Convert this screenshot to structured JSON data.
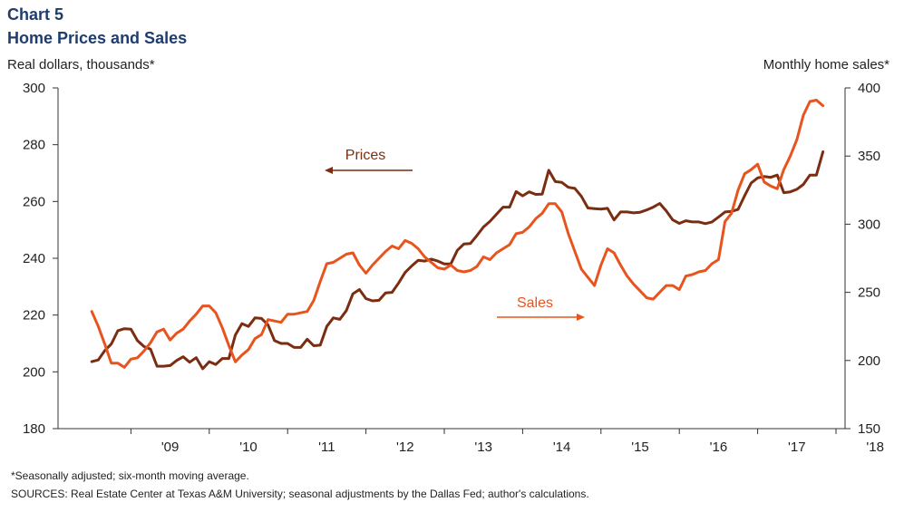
{
  "header": {
    "chart_number": "Chart 5",
    "title": "Home Prices and Sales",
    "left_axis_label": "Real dollars, thousands*",
    "right_axis_label": "Monthly home sales*"
  },
  "footer": {
    "footnote": "*Seasonally adjusted; six-month moving average.",
    "sources": "SOURCES: Real Estate Center at Texas A&M University; seasonal adjustments by the Dallas Fed; author's calculations."
  },
  "colors": {
    "prices": "#7b2d12",
    "sales": "#e8541e",
    "axis": "#333333"
  },
  "chart_data": {
    "type": "line",
    "x_tick_labels": [
      "'09",
      "'10",
      "'11",
      "'12",
      "'13",
      "'14",
      "'15",
      "'16",
      "'17",
      "'18"
    ],
    "ylim_left": [
      180,
      300
    ],
    "yticks_left": [
      180,
      200,
      220,
      240,
      260,
      280,
      300
    ],
    "ylim_right": [
      150,
      400
    ],
    "yticks_right": [
      150,
      200,
      250,
      300,
      350,
      400
    ],
    "grid": false,
    "annotations": [
      {
        "text": "Prices",
        "arrow": "left",
        "series": "Prices"
      },
      {
        "text": "Sales",
        "arrow": "right",
        "series": "Sales"
      }
    ],
    "series": [
      {
        "name": "Prices",
        "axis": "left",
        "x_start": "2008-07",
        "values": [
          203.6,
          204.2,
          207.5,
          209.8,
          214.5,
          215.2,
          215.0,
          211.0,
          208.9,
          208.0,
          202.0,
          202.0,
          202.2,
          204.0,
          205.3,
          203.4,
          205.0,
          201.1,
          203.6,
          202.6,
          204.7,
          204.7,
          213.0,
          217.0,
          216.0,
          219.0,
          218.8,
          216.5,
          211.0,
          210.0,
          210.0,
          208.6,
          208.6,
          211.5,
          209.2,
          209.4,
          216.0,
          219.0,
          218.5,
          221.6,
          227.5,
          229.0,
          225.8,
          225.0,
          225.2,
          227.8,
          228.0,
          231.3,
          235.0,
          237.3,
          239.3,
          239.0,
          239.7,
          239.0,
          238.0,
          238.0,
          242.8,
          245.0,
          245.2,
          248.0,
          251.0,
          253.0,
          255.5,
          258.0,
          258.0,
          263.5,
          262.0,
          263.4,
          262.5,
          262.6,
          271.0,
          267.0,
          266.7,
          265.0,
          264.6,
          261.8,
          257.7,
          257.5,
          257.3,
          257.6,
          253.5,
          256.3,
          256.3,
          256.0,
          256.2,
          257.0,
          258.0,
          259.3,
          256.7,
          253.5,
          252.3,
          253.2,
          252.8,
          252.8,
          252.2,
          252.8,
          254.5,
          256.3,
          256.5,
          257.2,
          262.0,
          266.5,
          268.3,
          268.8,
          268.5,
          269.3,
          263.1,
          263.4,
          264.3,
          266.0,
          269.3,
          269.3,
          277.5
        ]
      },
      {
        "name": "Sales",
        "axis": "right",
        "x_start": "2008-07",
        "values": [
          236,
          225,
          212,
          198,
          198,
          195,
          201,
          202,
          207,
          213,
          221,
          223,
          215,
          220,
          223,
          229,
          234,
          240,
          240,
          235,
          224,
          211,
          199,
          204,
          208,
          216,
          219,
          230,
          229,
          228,
          234,
          234,
          235,
          236,
          244,
          258,
          271,
          272,
          275,
          278,
          279,
          270,
          264,
          270,
          275,
          280,
          284,
          282,
          288,
          286,
          282,
          276,
          272,
          268,
          267,
          270,
          266,
          265,
          266,
          269,
          276,
          274,
          279,
          282,
          285,
          293,
          294,
          298,
          304,
          308,
          315,
          315,
          309,
          293,
          280,
          267,
          261,
          255,
          270,
          282,
          279,
          270,
          262,
          256,
          251,
          246,
          245,
          250,
          255,
          255,
          252,
          262,
          263,
          265,
          266,
          271,
          274,
          302,
          308,
          325,
          337,
          340,
          344,
          331,
          328,
          326,
          340,
          350,
          362,
          380,
          390,
          391,
          387
        ]
      }
    ]
  }
}
